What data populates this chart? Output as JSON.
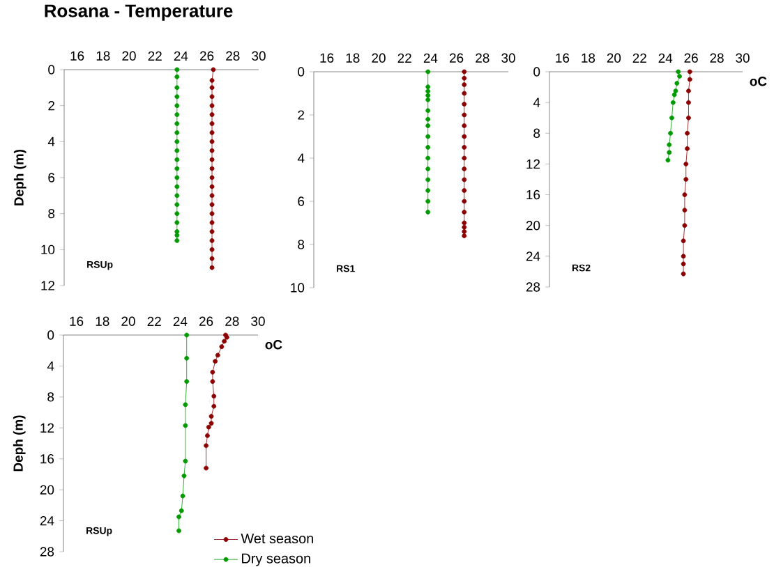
{
  "chart_data": [
    {
      "type": "line",
      "title": "Rosana - Temperature",
      "ylabel": "Deph (m)",
      "annotations": [
        "RSUp"
      ],
      "xlim": [
        15,
        30
      ],
      "xticks": [
        16,
        18,
        20,
        22,
        24,
        26,
        28,
        30
      ],
      "ylim": [
        12,
        0
      ],
      "yticks": [
        0,
        2,
        4,
        6,
        8,
        10,
        12
      ],
      "marker": "circle",
      "line_style": "solid",
      "series": [
        {
          "color": "#8b0000",
          "x": [
            26.5,
            26.4,
            26.4,
            26.4,
            26.4,
            26.4,
            26.4,
            26.4,
            26.4,
            26.4,
            26.4,
            26.4,
            26.4,
            26.4,
            26.4,
            26.4,
            26.4,
            26.4,
            26.4,
            26.4,
            26.4,
            26.4,
            26.4
          ],
          "values": [
            0,
            0.6,
            1,
            1.5,
            2,
            2.5,
            3,
            3.5,
            4,
            4.5,
            5,
            5.5,
            6,
            6.5,
            7,
            7.5,
            8,
            8.5,
            9,
            9.5,
            10,
            10.5,
            11
          ]
        },
        {
          "color": "#009a00",
          "x": [
            23.7,
            23.7,
            23.7,
            23.7,
            23.7,
            23.7,
            23.7,
            23.7,
            23.7,
            23.7,
            23.7,
            23.7,
            23.7,
            23.7,
            23.7,
            23.7,
            23.7,
            23.7,
            23.7,
            23.7,
            23.7
          ],
          "values": [
            0,
            0.4,
            1,
            1.5,
            2,
            2.5,
            3,
            3.5,
            4,
            4.5,
            5,
            5.5,
            6,
            6.5,
            7,
            7.5,
            8,
            8.5,
            9,
            9.2,
            9.5
          ]
        }
      ]
    },
    {
      "type": "line",
      "annotations": [
        "RS1"
      ],
      "xlim": [
        15,
        30
      ],
      "xticks": [
        16,
        18,
        20,
        22,
        24,
        26,
        28,
        30
      ],
      "ylim": [
        10,
        0
      ],
      "yticks": [
        0,
        2,
        4,
        6,
        8,
        10
      ],
      "marker": "circle",
      "line_style": "solid",
      "series": [
        {
          "color": "#8b0000",
          "x": [
            26.6,
            26.6,
            26.6,
            26.6,
            26.6,
            26.6,
            26.6,
            26.6,
            26.6,
            26.6,
            26.6,
            26.6,
            26.6,
            26.6,
            26.6,
            26.6,
            26.6,
            26.6,
            26.6
          ],
          "values": [
            0,
            0.3,
            0.6,
            1,
            1.5,
            2,
            2.5,
            3,
            3.5,
            4,
            4.5,
            5,
            5.5,
            6,
            6.5,
            7,
            7.2,
            7.4,
            7.6
          ]
        },
        {
          "color": "#009a00",
          "x": [
            23.8,
            23.8,
            23.8,
            23.8,
            23.8,
            23.8,
            23.8,
            23.8,
            23.8,
            23.8,
            23.8,
            23.8,
            23.8,
            23.8,
            23.8,
            23.8
          ],
          "values": [
            0,
            0.7,
            0.9,
            1.1,
            1.3,
            1.8,
            2.2,
            2.5,
            3,
            3.5,
            4,
            4.5,
            5,
            5.5,
            6,
            6.5
          ]
        }
      ]
    },
    {
      "type": "line",
      "xlabel": "oC",
      "annotations": [
        "RS2"
      ],
      "xlim": [
        15,
        30
      ],
      "xticks": [
        16,
        18,
        20,
        22,
        24,
        26,
        28,
        30
      ],
      "ylim": [
        28,
        0
      ],
      "yticks": [
        0,
        4,
        8,
        12,
        16,
        20,
        24,
        28
      ],
      "marker": "circle",
      "line_style": "solid",
      "series": [
        {
          "color": "#8b0000",
          "x": [
            25.9,
            25.9,
            25.8,
            25.8,
            25.8,
            25.7,
            25.7,
            25.6,
            25.6,
            25.5,
            25.5,
            25.5,
            25.4,
            25.4,
            25.4,
            25.4
          ],
          "values": [
            0,
            1,
            2.5,
            4,
            6,
            8,
            10,
            12,
            14,
            16,
            18,
            20,
            22,
            24,
            25,
            26.3
          ]
        },
        {
          "color": "#009a00",
          "x": [
            25.0,
            25.1,
            24.9,
            24.8,
            24.7,
            24.6,
            24.5,
            24.4,
            24.3,
            24.3,
            24.2
          ],
          "values": [
            0,
            0.6,
            1.5,
            2.5,
            3,
            4,
            6,
            8,
            9.5,
            10.5,
            11.5
          ]
        }
      ]
    },
    {
      "type": "line",
      "xlabel": "oC",
      "ylabel": "Deph (m)",
      "annotations": [
        "RSUp"
      ],
      "xlim": [
        15,
        30
      ],
      "xticks": [
        16,
        18,
        20,
        22,
        24,
        26,
        28,
        30
      ],
      "ylim": [
        28,
        0
      ],
      "yticks": [
        0,
        4,
        8,
        12,
        16,
        20,
        24,
        28
      ],
      "marker": "circle",
      "line_style": "solid",
      "legend": "bottom right",
      "series": [
        {
          "name": "Wet season",
          "color": "#8b0000",
          "x": [
            27.5,
            27.6,
            27.4,
            27.2,
            26.9,
            26.7,
            26.5,
            26.5,
            26.6,
            26.6,
            26.4,
            26.4,
            26.2,
            26.1,
            26.0,
            26.0
          ],
          "values": [
            0,
            0.3,
            0.8,
            1.5,
            2.6,
            3.4,
            4.8,
            6,
            7.9,
            9.2,
            10.5,
            11.4,
            11.9,
            13,
            14.3,
            17.2
          ]
        },
        {
          "name": "Dry season",
          "color": "#009a00",
          "x": [
            24.5,
            24.5,
            24.5,
            24.4,
            24.4,
            24.4,
            24.3,
            24.2,
            24.1,
            23.9,
            23.9
          ],
          "values": [
            0,
            3,
            6,
            9,
            11.7,
            16.3,
            18.2,
            20.8,
            22.7,
            23.5,
            25.3
          ]
        }
      ]
    }
  ]
}
